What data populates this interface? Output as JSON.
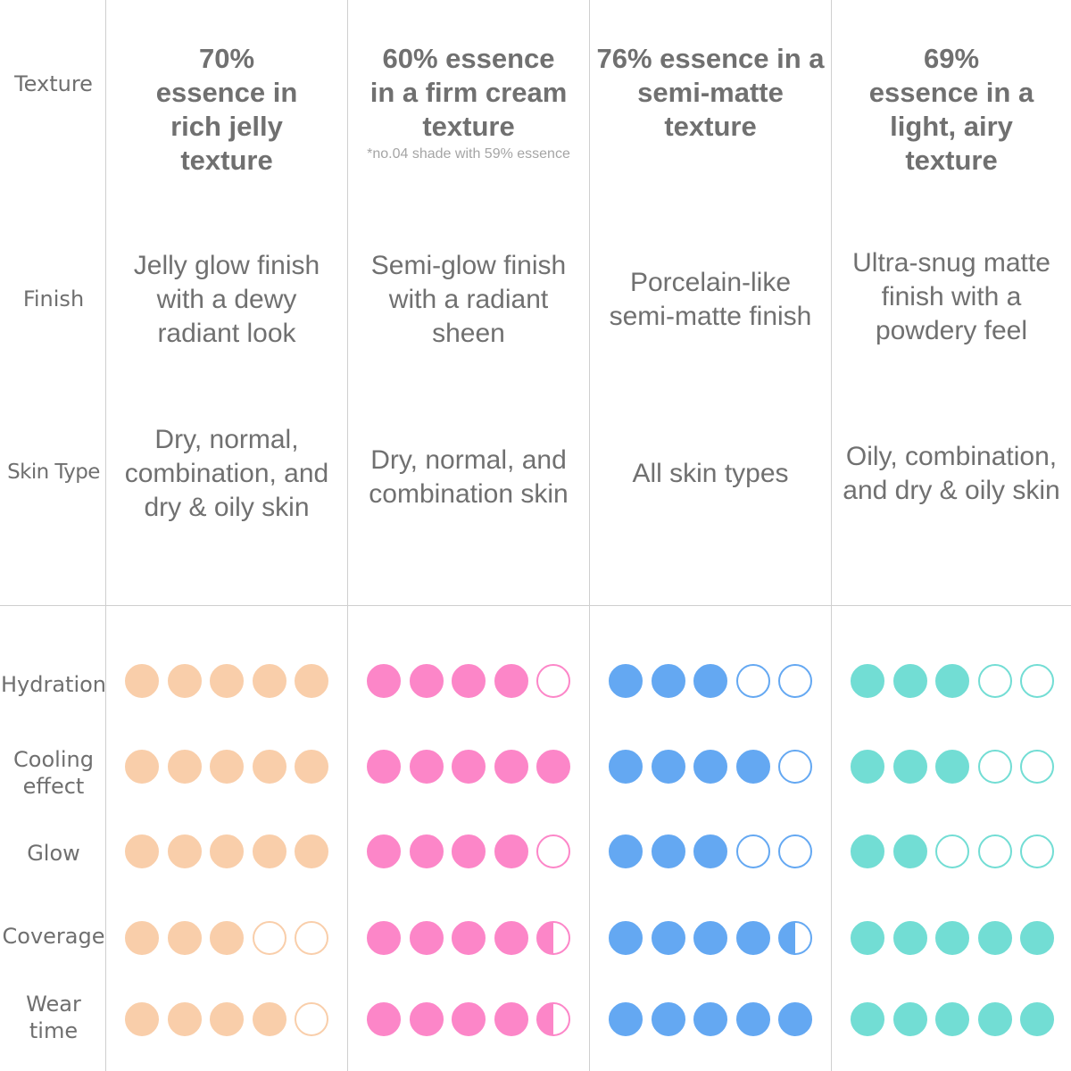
{
  "row_labels": {
    "texture": "Texture",
    "finish": "Finish",
    "skin_type": "Skin Type",
    "hydration": "Hydration",
    "cooling_effect": "Cooling effect",
    "glow": "Glow",
    "coverage": "Coverage",
    "wear_time": "Wear time"
  },
  "products": [
    {
      "color": "#f9ceaa",
      "texture": "70% essence in rich jelly texture",
      "texture_note": "",
      "finish": "Jelly glow finish with a dewy radiant look",
      "skin_type": "Dry, normal, combination, and dry & oily skin",
      "ratings": {
        "hydration": 5,
        "cooling_effect": 5,
        "glow": 5,
        "coverage": 3,
        "wear_time": 4
      }
    },
    {
      "color": "#fc86c8",
      "texture": "60% essence in a firm cream texture",
      "texture_note": "*no.04 shade with 59% essence",
      "finish": "Semi-glow finish with a radiant sheen",
      "skin_type": "Dry, normal, and combination skin",
      "ratings": {
        "hydration": 4,
        "cooling_effect": 5,
        "glow": 4,
        "coverage": 4.5,
        "wear_time": 4.5
      }
    },
    {
      "color": "#64a8f2",
      "texture": "76% essence in a semi-matte texture",
      "texture_note": "",
      "finish": "Porcelain-like semi-matte finish",
      "skin_type": "All skin types",
      "ratings": {
        "hydration": 3,
        "cooling_effect": 4,
        "glow": 3,
        "coverage": 4.5,
        "wear_time": 5
      }
    },
    {
      "color": "#72ddd4",
      "texture": "69% essence in a light, airy texture",
      "texture_note": "",
      "finish": "Ultra-snug matte finish with a powdery feel",
      "skin_type": "Oily, combination, and dry & oily skin",
      "ratings": {
        "hydration": 3,
        "cooling_effect": 3,
        "glow": 2,
        "coverage": 5,
        "wear_time": 5
      }
    }
  ]
}
